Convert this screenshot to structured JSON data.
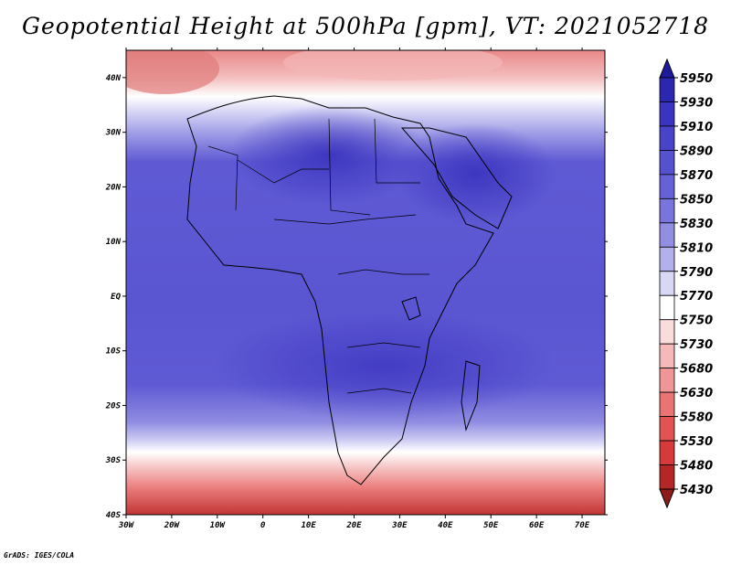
{
  "title": "Geopotential Height at 500hPa [gpm], VT: 2021052718",
  "credit": "GrADS: IGES/COLA",
  "map": {
    "lon_range": [
      -30,
      75
    ],
    "lat_range": [
      -40,
      45
    ],
    "lon_ticks": [
      "30W",
      "20W",
      "10W",
      "0",
      "10E",
      "20E",
      "30E",
      "40E",
      "50E",
      "60E",
      "70E"
    ],
    "lat_ticks": [
      "40N",
      "30N",
      "20N",
      "10N",
      "EQ",
      "10S",
      "20S",
      "30S",
      "40S"
    ]
  },
  "colorbar": {
    "levels": [
      "5950",
      "5930",
      "5910",
      "5890",
      "5870",
      "5850",
      "5830",
      "5810",
      "5790",
      "5770",
      "5750",
      "5730",
      "5680",
      "5630",
      "5580",
      "5530",
      "5480",
      "5430"
    ],
    "colors": [
      "#1e1a9c",
      "#2c27b0",
      "#3a34c0",
      "#4843c8",
      "#5651cf",
      "#6661d6",
      "#7a75dc",
      "#928fe3",
      "#b3b0ec",
      "#d8d7f6",
      "#ffffff",
      "#fbdcdc",
      "#f6b9b9",
      "#f09696",
      "#ea7474",
      "#e25353",
      "#d63a3a",
      "#b52626",
      "#8e1a1a"
    ]
  }
}
